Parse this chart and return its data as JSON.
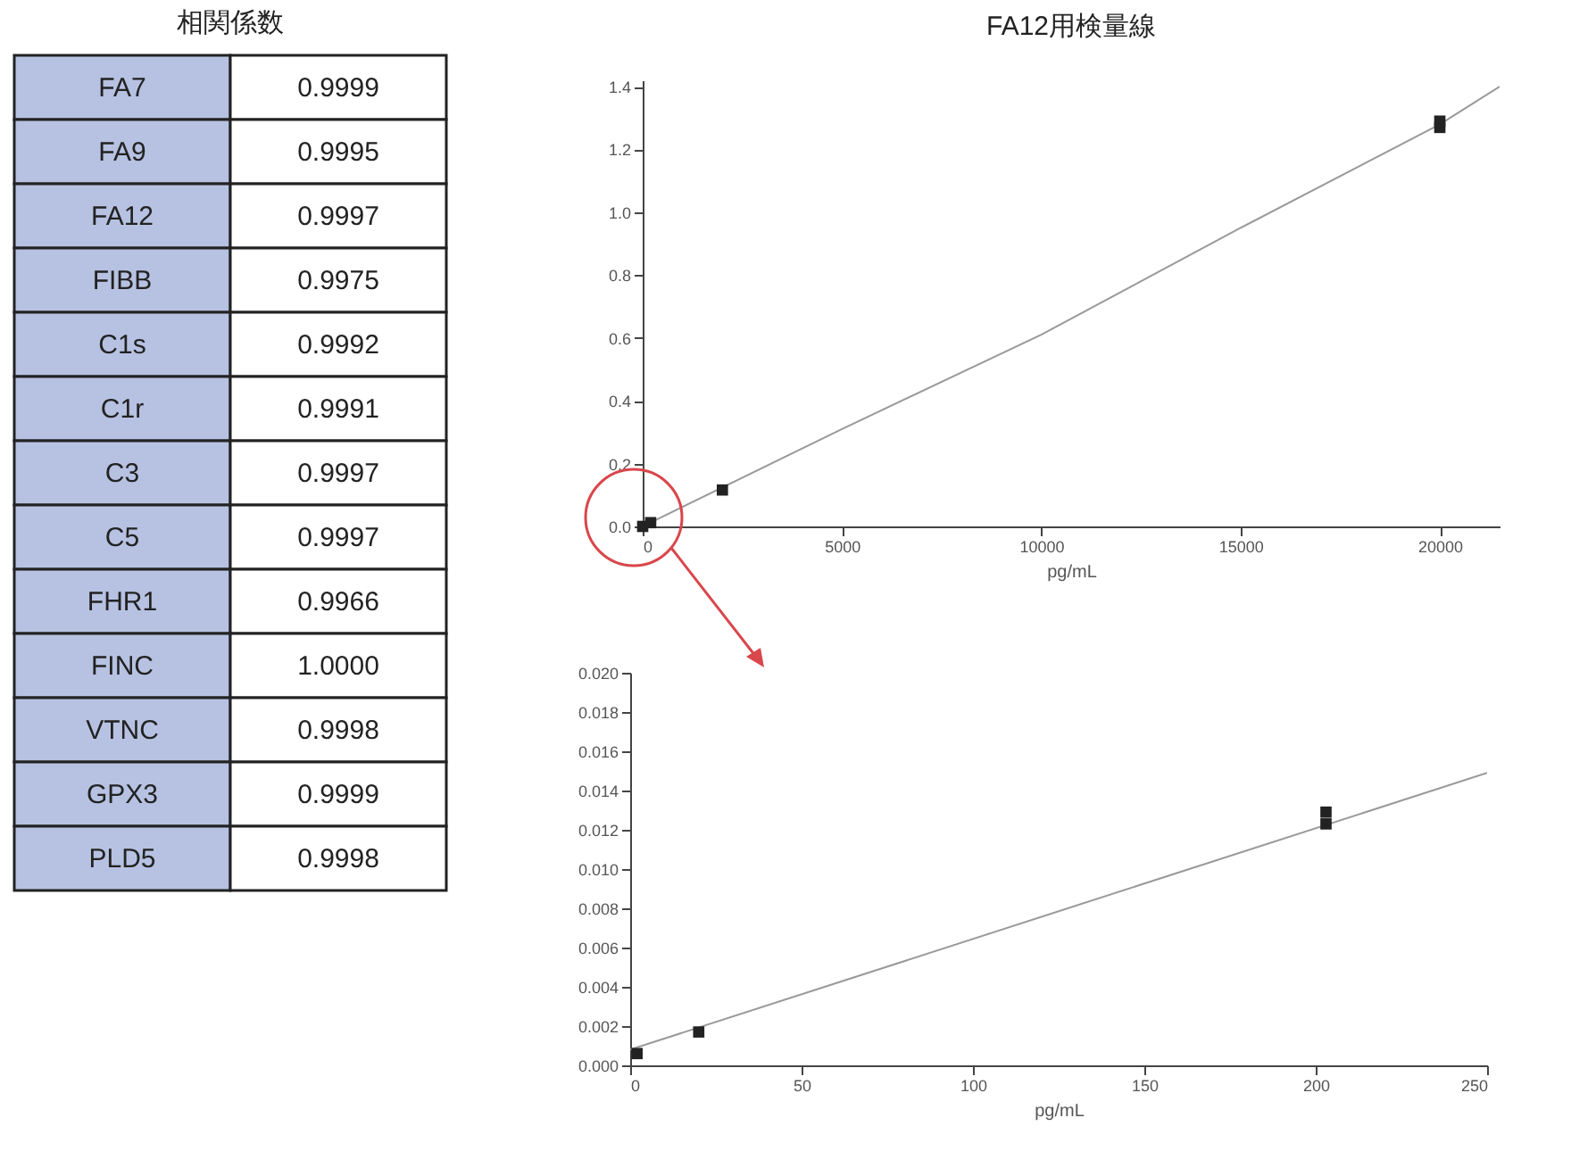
{
  "chart_data": [
    {
      "type": "other",
      "title": "相関係数",
      "categories": [
        "FA7",
        "FA9",
        "FA12",
        "FIBB",
        "C1s",
        "C1r",
        "C3",
        "C5",
        "FHR1",
        "FINC",
        "VTNC",
        "GPX3",
        "PLD5"
      ],
      "value_labels": [
        "0.9999",
        "0.9995",
        "0.9997",
        "0.9975",
        "0.9992",
        "0.9991",
        "0.9997",
        "0.9997",
        "0.9966",
        "1.0000",
        "0.9998",
        "0.9999",
        "0.9998"
      ]
    },
    {
      "type": "scatter",
      "title": "FA12用検量線",
      "xlabel": "pg/mL",
      "xlim": [
        0,
        21500
      ],
      "xticks": [
        0,
        5000,
        10000,
        15000,
        20000
      ],
      "ylim": [
        0,
        1.42
      ],
      "yticks": [
        {
          "value": 0,
          "label": "0.0"
        },
        0.2,
        0.4,
        0.6,
        0.8,
        {
          "value": 1,
          "label": "1.0"
        },
        1.2,
        1.4
      ],
      "series": [
        {
          "type": "scatter",
          "marker": "square",
          "color": "#222222",
          "x": [
            0,
            200,
            2000,
            20000,
            20000
          ],
          "values": [
            0.0,
            0.012,
            0.116,
            1.27,
            1.29
          ]
        },
        {
          "type": "line",
          "color": "#999999",
          "x": [
            0,
            5000,
            10000,
            15000,
            20000,
            21500
          ],
          "values": [
            0.0,
            0.31,
            0.61,
            0.95,
            1.28,
            1.4
          ]
        }
      ]
    },
    {
      "type": "scatter",
      "xlabel": "pg/mL",
      "xlim": [
        0,
        250
      ],
      "xticks": [
        0,
        50,
        100,
        150,
        200,
        250
      ],
      "ylim": [
        0,
        0.02
      ],
      "yticks": [
        {
          "value": 0,
          "label": "0.000"
        },
        {
          "value": 0.002,
          "label": "0.002"
        },
        {
          "value": 0.004,
          "label": "0.004"
        },
        {
          "value": 0.006,
          "label": "0.006"
        },
        {
          "value": 0.008,
          "label": "0.008"
        },
        {
          "value": 0.01,
          "label": "0.010"
        },
        {
          "value": 0.012,
          "label": "0.012"
        },
        {
          "value": 0.014,
          "label": "0.014"
        },
        {
          "value": 0.016,
          "label": "0.016"
        },
        {
          "value": 0.018,
          "label": "0.018"
        },
        {
          "value": 0.02,
          "label": "0.020"
        }
      ],
      "series": [
        {
          "type": "scatter",
          "marker": "square",
          "color": "#222222",
          "x": [
            2,
            20,
            203,
            203
          ],
          "values": [
            0.0006,
            0.0017,
            0.0123,
            0.0129
          ]
        },
        {
          "type": "line",
          "color": "#999999",
          "x": [
            0,
            250
          ],
          "values": [
            0.0008,
            0.0149
          ]
        }
      ]
    }
  ]
}
